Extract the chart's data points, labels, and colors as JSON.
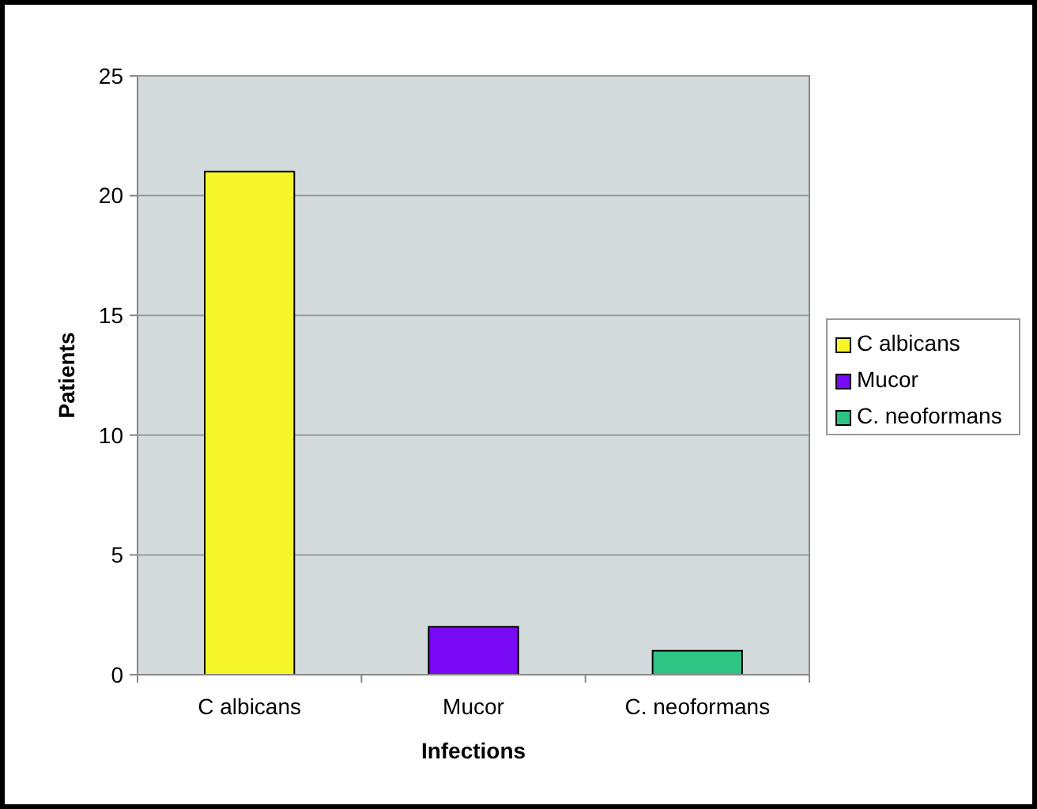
{
  "chart_data": {
    "type": "bar",
    "xlabel": "Infections",
    "ylabel": "Patients",
    "categories": [
      "C albicans",
      "Mucor",
      "C. neoformans"
    ],
    "series": [
      {
        "name": "C albicans",
        "color": "#f5f52a",
        "values": [
          21,
          null,
          null
        ]
      },
      {
        "name": "Mucor",
        "color": "#7a0af5",
        "values": [
          null,
          2,
          null
        ]
      },
      {
        "name": "C. neoformans",
        "color": "#2ec484",
        "values": [
          null,
          null,
          1
        ]
      }
    ],
    "ylim": [
      0,
      25
    ],
    "yticks": [
      0,
      5,
      10,
      15,
      20,
      25
    ],
    "grid": "y",
    "legend": "right"
  }
}
